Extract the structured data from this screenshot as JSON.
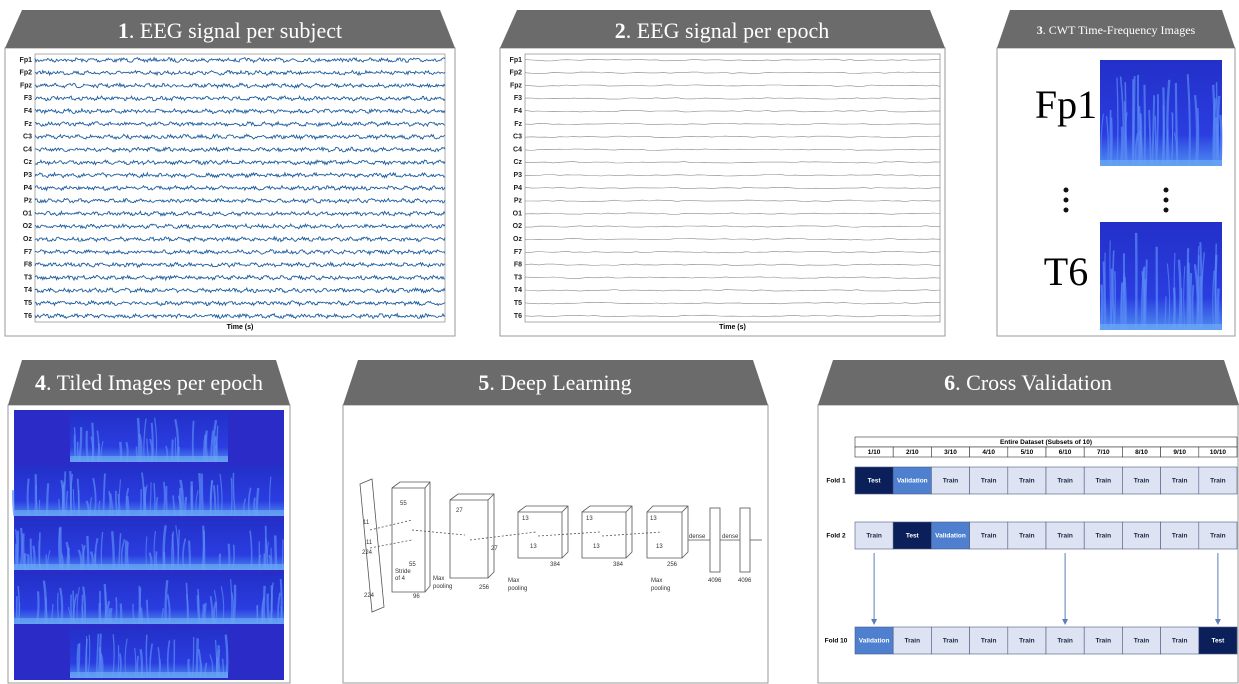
{
  "panels": [
    {
      "number": "1",
      "label": ". EEG signal per subject"
    },
    {
      "number": "2",
      "label": ". EEG signal per epoch"
    },
    {
      "number": "3",
      "label": ". CWT Time-Frequency Images"
    },
    {
      "number": "4",
      "label": ". Tiled Images per epoch"
    },
    {
      "number": "5",
      "label": ". Deep Learning"
    },
    {
      "number": "6",
      "label": ". Cross Validation"
    }
  ],
  "eeg": {
    "channels": [
      "Fp1",
      "Fp2",
      "Fpz",
      "F3",
      "F4",
      "Fz",
      "C3",
      "C4",
      "Cz",
      "P3",
      "P4",
      "Pz",
      "O1",
      "O2",
      "Oz",
      "F7",
      "F8",
      "T3",
      "T4",
      "T5",
      "T6"
    ],
    "x_label": "Time (s)"
  },
  "cwt": {
    "channels": [
      "Fp1",
      "T6"
    ]
  },
  "cnn": {
    "labels": [
      "11",
      "11",
      "224",
      "224",
      "Stride",
      "of 4",
      "55",
      "55",
      "96",
      "Max",
      "pooling",
      "27",
      "27",
      "256",
      "Max",
      "pooling",
      "13",
      "13",
      "384",
      "13",
      "13",
      "384",
      "13",
      "13",
      "256",
      "Max",
      "pooling",
      "dense",
      "dense",
      "4096",
      "4096"
    ]
  },
  "cv": {
    "dataset_label": "Entire Dataset (Subsets of 10)",
    "subsets": [
      "1/10",
      "2/10",
      "3/10",
      "4/10",
      "5/10",
      "6/10",
      "7/10",
      "8/10",
      "9/10",
      "10/10"
    ],
    "folds": [
      {
        "name": "Fold 1",
        "cells": [
          "Test",
          "Validation",
          "Train",
          "Train",
          "Train",
          "Train",
          "Train",
          "Train",
          "Train",
          "Train"
        ]
      },
      {
        "name": "Fold 2",
        "cells": [
          "Train",
          "Test",
          "Validation",
          "Train",
          "Train",
          "Train",
          "Train",
          "Train",
          "Train",
          "Train"
        ]
      },
      {
        "name": "Fold 10",
        "cells": [
          "Validation",
          "Train",
          "Train",
          "Train",
          "Train",
          "Train",
          "Train",
          "Train",
          "Train",
          "Test"
        ]
      }
    ]
  }
}
